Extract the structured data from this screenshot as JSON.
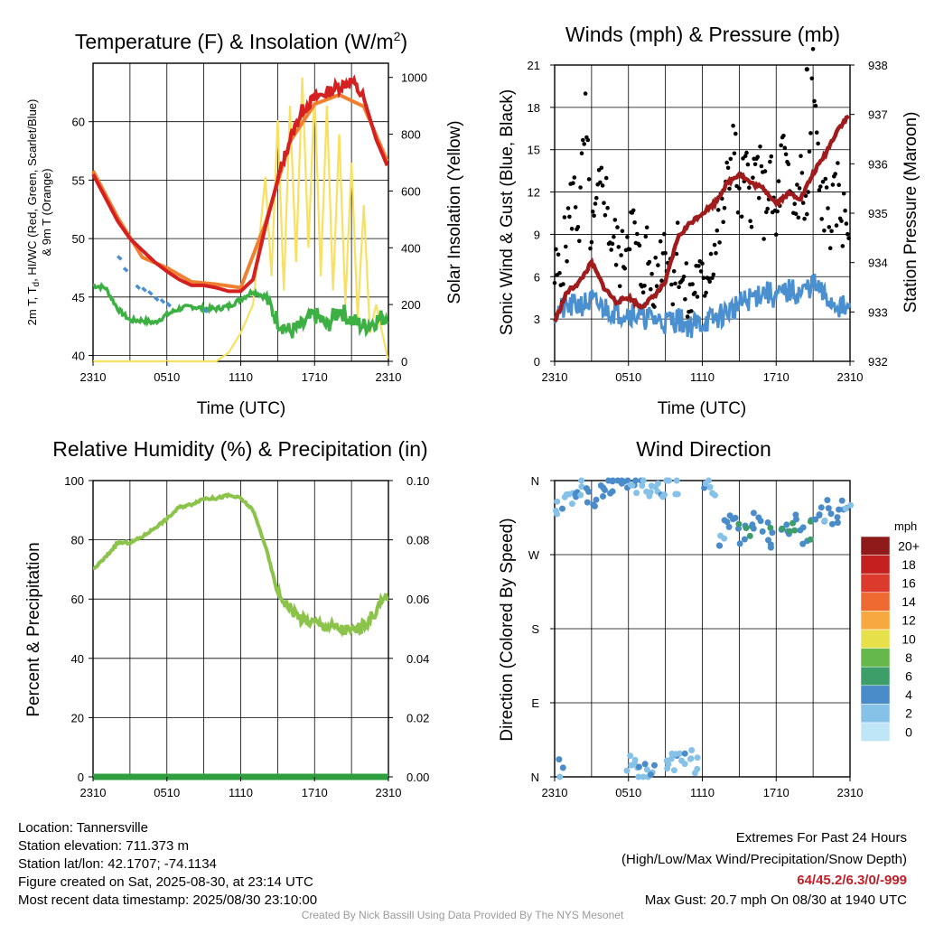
{
  "colors": {
    "temp_red": "#d42020",
    "dew_green": "#3cb043",
    "heat_scarlet": "#e8413a",
    "wc_blue": "#4a90d0",
    "t9m_orange": "#f08030",
    "solar_yellow": "#f8e060",
    "wind_blue": "#4a90d0",
    "gust_black": "#000000",
    "pressure_maroon": "#a01c1c",
    "rh_green": "#8cc34a",
    "precip_green": "#2e9e3e"
  },
  "panels": {
    "temperature": {
      "title": "Temperature (F) & Insolation (W/m",
      "title_sup": "2",
      "title_close": ")",
      "ylabel_line1": "2m T, T",
      "ylabel_sub": "d",
      "ylabel_line1b": ", HI/WC (Red, Green, Scarlet/Blue)",
      "ylabel_line2": "& 9m T (Orange)",
      "y2label": "Solar Insolation (Yellow)",
      "xlabel": "Time (UTC)"
    },
    "winds": {
      "title": "Winds (mph) & Pressure (mb)",
      "ylabel": "Sonic Wind & Gust (Blue, Black)",
      "y2label": "Station Pressure (Maroon)",
      "xlabel": "Time (UTC)"
    },
    "humidity": {
      "title": "Relative Humidity (%) & Precipitation (in)",
      "ylabel": "Percent & Precipitation"
    },
    "direction": {
      "title": "Wind Direction",
      "ylabel": "Direction (Colored By Speed)",
      "legend_title": "mph"
    }
  },
  "chart_data": [
    {
      "type": "line",
      "title": "Temperature (F) & Insolation (W/m2)",
      "xlabel": "Time (UTC)",
      "ylabel": "2m T, Td, HI/WC (Red, Green, Scarlet/Blue) & 9m T (Orange)",
      "y2label": "Solar Insolation (Yellow)",
      "x_ticks": [
        "2310",
        "0510",
        "1110",
        "1710",
        "2310"
      ],
      "x_hours_range": [
        0,
        24
      ],
      "ylim": [
        39.5,
        65
      ],
      "y_ticks": [
        "40",
        "45",
        "50",
        "55",
        "60"
      ],
      "y2lim": [
        0,
        1050
      ],
      "y2_ticks": [
        "0",
        "200",
        "400",
        "600",
        "800",
        "1000"
      ],
      "grid": true,
      "series": [
        {
          "name": "2m T",
          "x": [
            0,
            1,
            2,
            3,
            4,
            5,
            6,
            7,
            8,
            9,
            10,
            11,
            12,
            13,
            14,
            15,
            16,
            17,
            18,
            19,
            20,
            21,
            22,
            23,
            24
          ],
          "values": [
            55.5,
            53.5,
            51.5,
            50.0,
            49.0,
            48.0,
            47.2,
            46.5,
            46.0,
            46.0,
            45.8,
            45.5,
            45.5,
            46.5,
            51.0,
            55.0,
            58.5,
            61.0,
            62.0,
            62.5,
            63.0,
            63.5,
            62.0,
            58.5,
            56.0
          ]
        },
        {
          "name": "9m T",
          "x": [
            0,
            2,
            4,
            6,
            8,
            10,
            12,
            14,
            16,
            18,
            20,
            22,
            24
          ],
          "values": [
            55.8,
            51.8,
            48.4,
            47.5,
            46.3,
            46.1,
            45.8,
            51.3,
            58.3,
            61.5,
            62.3,
            61.3,
            56.4
          ]
        },
        {
          "name": "Td",
          "x": [
            0,
            1,
            2,
            3,
            4,
            5,
            6,
            7,
            8,
            9,
            10,
            11,
            12,
            13,
            14,
            15,
            16,
            17,
            18,
            19,
            20,
            21,
            22,
            23,
            24
          ],
          "values": [
            46.0,
            45.8,
            44.0,
            43.0,
            43.0,
            42.8,
            43.5,
            44.0,
            44.2,
            44.0,
            44.0,
            44.2,
            44.8,
            45.5,
            45.0,
            43.0,
            42.0,
            42.5,
            43.5,
            42.5,
            44.0,
            43.0,
            42.5,
            43.0,
            43.5
          ]
        },
        {
          "name": "WC",
          "x": [
            2.0,
            2.5,
            3.5,
            4.0,
            4.5,
            5.0,
            5.5,
            6.0,
            9.0
          ],
          "values": [
            48.5,
            47.5,
            46.0,
            45.8,
            45.5,
            45.0,
            44.8,
            44.5,
            44.0
          ]
        },
        {
          "name": "Solar",
          "x": [
            0,
            10,
            11,
            12,
            13,
            14,
            14.5,
            15,
            15.5,
            16,
            16.5,
            17,
            17.5,
            18,
            18.5,
            19,
            19.5,
            20,
            20.5,
            21,
            21.5,
            22,
            22.5,
            23,
            24
          ],
          "values": [
            0,
            0,
            30,
            100,
            200,
            650,
            300,
            850,
            250,
            900,
            350,
            1000,
            400,
            950,
            300,
            900,
            250,
            800,
            200,
            700,
            150,
            550,
            100,
            200,
            0
          ]
        }
      ]
    },
    {
      "type": "scatter",
      "title": "Winds (mph) & Pressure (mb)",
      "xlabel": "Time (UTC)",
      "ylabel": "Sonic Wind & Gust (Blue, Black)",
      "y2label": "Station Pressure (Maroon)",
      "x_ticks": [
        "2310",
        "0510",
        "1110",
        "1710",
        "2310"
      ],
      "ylim": [
        0,
        21
      ],
      "y_ticks": [
        "0",
        "3",
        "6",
        "9",
        "12",
        "15",
        "18",
        "21"
      ],
      "y2lim": [
        932,
        938
      ],
      "y2_ticks": [
        "932",
        "933",
        "934",
        "935",
        "936",
        "937",
        "938"
      ],
      "grid": true,
      "series": [
        {
          "name": "Sonic Wind",
          "x": [
            0,
            1,
            2,
            3,
            4,
            5,
            6,
            7,
            8,
            9,
            10,
            11,
            12,
            13,
            14,
            15,
            16,
            17,
            18,
            19,
            20,
            21,
            22,
            23,
            24
          ],
          "values": [
            3.5,
            3.8,
            4.0,
            4.2,
            3.8,
            3.5,
            3.5,
            3.2,
            3.0,
            2.8,
            3.0,
            2.5,
            2.8,
            3.0,
            3.5,
            4.0,
            4.5,
            5.0,
            4.5,
            5.0,
            4.8,
            5.5,
            4.5,
            4.0,
            3.5
          ]
        },
        {
          "name": "Gust",
          "x": [
            0.5,
            1,
            1.5,
            2,
            2.5,
            3,
            3.5,
            4,
            4.5,
            5,
            5.5,
            6,
            6.5,
            7,
            7.5,
            8,
            8.5,
            9,
            9.5,
            10,
            10.5,
            11,
            11.5,
            12,
            12.5,
            13,
            13.5,
            14,
            14.5,
            15,
            15.5,
            16,
            16.5,
            17,
            17.5,
            18,
            18.5,
            19,
            19.5,
            20,
            20.5,
            21,
            21.5,
            22,
            22.5,
            23,
            23.5
          ],
          "values": [
            6,
            9,
            12,
            10,
            17,
            8,
            11,
            13,
            9,
            8,
            7,
            10,
            9,
            6,
            8,
            5,
            7,
            9,
            6,
            8,
            5,
            4,
            6,
            5,
            7,
            8,
            10,
            12,
            16,
            11,
            13,
            12,
            14,
            11,
            13,
            9,
            15,
            12,
            11,
            13,
            10,
            20.7,
            12,
            11,
            10,
            12,
            10
          ]
        },
        {
          "name": "Station Pressure",
          "x": [
            0,
            1,
            2,
            3,
            4,
            5,
            6,
            7,
            8,
            9,
            10,
            11,
            12,
            13,
            14,
            15,
            16,
            17,
            18,
            19,
            20,
            21,
            22,
            23,
            24
          ],
          "values": [
            932.8,
            933.4,
            933.6,
            934.0,
            933.5,
            933.2,
            933.3,
            933.1,
            933.3,
            933.6,
            934.5,
            934.8,
            935.0,
            935.2,
            935.6,
            935.8,
            935.6,
            935.5,
            935.2,
            935.4,
            935.3,
            935.8,
            936.2,
            936.7,
            937.0
          ]
        }
      ]
    },
    {
      "type": "line",
      "title": "Relative Humidity (%) & Precipitation (in)",
      "ylabel": "Percent & Precipitation",
      "x_ticks": [
        "2310",
        "0510",
        "1110",
        "1710",
        "2310"
      ],
      "ylim": [
        0,
        100
      ],
      "y_ticks": [
        "0",
        "20",
        "40",
        "60",
        "80",
        "100"
      ],
      "y2lim": [
        0,
        0.1
      ],
      "y2_ticks": [
        "0.00",
        "0.02",
        "0.04",
        "0.06",
        "0.08",
        "0.10"
      ],
      "grid": true,
      "series": [
        {
          "name": "RH",
          "x": [
            0,
            1,
            2,
            3,
            4,
            5,
            6,
            7,
            8,
            9,
            10,
            11,
            12,
            13,
            14,
            15,
            16,
            17,
            18,
            19,
            20,
            21,
            22,
            23,
            24
          ],
          "values": [
            70,
            74,
            79,
            79,
            81,
            84,
            87,
            91,
            92,
            94,
            94,
            95,
            94,
            90,
            78,
            62,
            57,
            53,
            52,
            51,
            50,
            49,
            51,
            56,
            62
          ]
        },
        {
          "name": "Precipitation",
          "x": [
            0,
            24
          ],
          "values": [
            0,
            0
          ]
        }
      ]
    },
    {
      "type": "scatter",
      "title": "Wind Direction",
      "ylabel": "Direction (Colored By Speed)",
      "x_ticks": [
        "2310",
        "0510",
        "1110",
        "1710",
        "2310"
      ],
      "y_ticks": [
        "N",
        "E",
        "S",
        "W",
        "N"
      ],
      "legend_title": "mph",
      "legend_labels": [
        "0",
        "2",
        "4",
        "6",
        "8",
        "10",
        "12",
        "14",
        "16",
        "18",
        "20+"
      ],
      "legend_colors": [
        "#bfe6f6",
        "#86c2e8",
        "#4a8cca",
        "#3e9e6a",
        "#66b84a",
        "#e6e04a",
        "#f8a840",
        "#ee6a30",
        "#dd3a2e",
        "#c4201f",
        "#8e1a1a"
      ],
      "legend_placement": "right",
      "grid": true,
      "series": [
        {
          "name": "Direction",
          "x": [
            0.3,
            0.8,
            1.3,
            1.8,
            2.3,
            2.8,
            3.3,
            3.8,
            4.3,
            4.8,
            5.3,
            5.8,
            6.3,
            6.8,
            7.3,
            7.8,
            8.3,
            8.8,
            9.3,
            9.8,
            12.3,
            12.8,
            13.3,
            13.8,
            14.3,
            14.8,
            15.3,
            15.8,
            16.3,
            16.8,
            17.3,
            17.8,
            18.3,
            18.8,
            19.3,
            19.8,
            20.3,
            20.8,
            21.3,
            21.8,
            22.3,
            22.8,
            23.3,
            23.8,
            0.5,
            6.0,
            6.5,
            7.0,
            7.5,
            8.0,
            9.0,
            9.5,
            10.0,
            10.5,
            11.0,
            11.5
          ],
          "values": [
            330,
            335,
            340,
            345,
            350,
            342,
            338,
            346,
            352,
            355,
            358,
            350,
            356,
            354,
            358,
            352,
            355,
            348,
            357,
            350,
            355,
            352,
            290,
            300,
            310,
            305,
            295,
            300,
            310,
            305,
            300,
            290,
            295,
            305,
            300,
            310,
            295,
            300,
            312,
            320,
            325,
            315,
            330,
            335,
            10,
            20,
            15,
            5,
            8,
            3,
            12,
            18,
            22,
            25,
            20,
            15
          ],
          "speeds": [
            2,
            3,
            3,
            4,
            3,
            4,
            3,
            4,
            3,
            4,
            3,
            4,
            3,
            3,
            2,
            2,
            2,
            3,
            2,
            2,
            3,
            2,
            3,
            3,
            4,
            5,
            4,
            6,
            4,
            4,
            5,
            4,
            5,
            4,
            6,
            4,
            4,
            5,
            4,
            3,
            4,
            4,
            4,
            3,
            3,
            2,
            2,
            3,
            3,
            3,
            2,
            2,
            3,
            3,
            2,
            2
          ]
        }
      ]
    }
  ],
  "footer": {
    "location": "Location: Tannersville",
    "elevation": "Station elevation: 711.373 m",
    "latlon": "Station lat/lon: 42.1707; -74.1134",
    "created": "Figure created on Sat, 2025-08-30, at 23:14 UTC",
    "recent": "Most recent data timestamp: 2025/08/30 23:10:00",
    "extremes_title": "Extremes For Past 24 Hours",
    "extremes_subtitle": "(High/Low/Max Wind/Precipitation/Snow Depth)",
    "extremes_values": "64/45.2/6.3/0/-999",
    "max_gust": "Max Gust: 20.7 mph On 08/30 at 1940 UTC",
    "credit": "Created By Nick Bassill Using Data Provided By The NYS Mesonet"
  }
}
